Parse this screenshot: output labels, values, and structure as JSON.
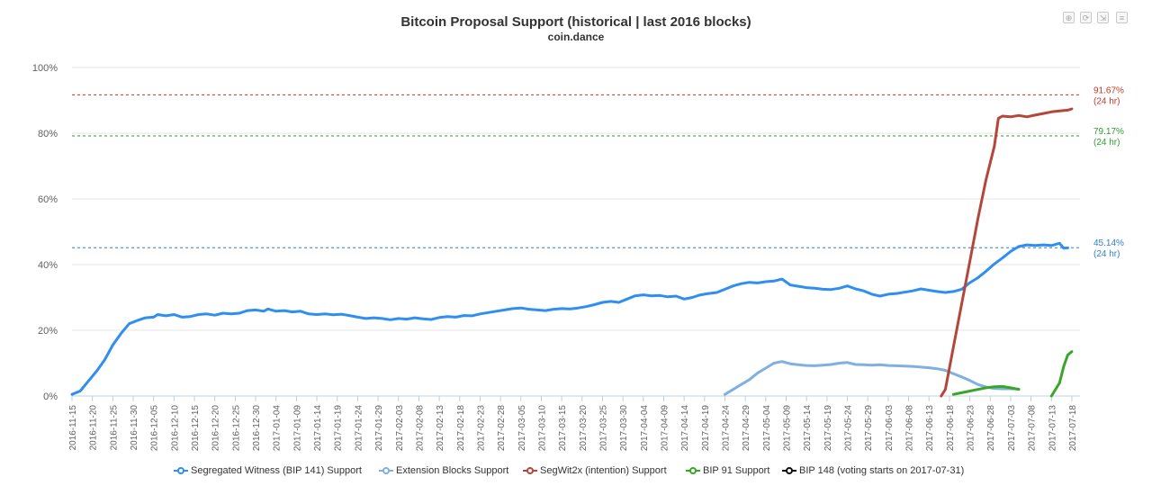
{
  "header": {
    "title": "Bitcoin Proposal Support (historical | last 2016 blocks)",
    "subtitle": "coin.dance"
  },
  "toolbar": {
    "buttons": [
      {
        "name": "zoom-in-icon",
        "glyph": "⊕"
      },
      {
        "name": "zoom-reset-icon",
        "glyph": "⟳"
      },
      {
        "name": "pan-icon",
        "glyph": "⇲"
      },
      {
        "name": "menu-icon",
        "glyph": "≡"
      }
    ]
  },
  "legend": [
    {
      "label": "Segregated Witness (BIP 141) Support",
      "color": "#2f8ff0"
    },
    {
      "label": "Extension Blocks Support",
      "color": "#7fb0e0"
    },
    {
      "label": "SegWit2x (intention) Support",
      "color": "#b5473a"
    },
    {
      "label": "BIP 91 Support",
      "color": "#3aa629"
    },
    {
      "label": "BIP 148 (voting starts on 2017-07-31)",
      "color": "#111111"
    }
  ],
  "chart_data": {
    "type": "line",
    "title": "Bitcoin Proposal Support (historical | last 2016 blocks)",
    "subtitle": "coin.dance",
    "x_start": "2016-11-15",
    "x_end": "2017-07-20",
    "x_ticks": [
      "2016-11-15",
      "2016-11-20",
      "2016-11-25",
      "2016-11-30",
      "2016-12-05",
      "2016-12-10",
      "2016-12-15",
      "2016-12-20",
      "2016-12-25",
      "2016-12-30",
      "2017-01-04",
      "2017-01-09",
      "2017-01-14",
      "2017-01-19",
      "2017-01-24",
      "2017-01-29",
      "2017-02-03",
      "2017-02-08",
      "2017-02-13",
      "2017-02-18",
      "2017-02-23",
      "2017-02-28",
      "2017-03-05",
      "2017-03-10",
      "2017-03-15",
      "2017-03-20",
      "2017-03-25",
      "2017-03-30",
      "2017-04-04",
      "2017-04-09",
      "2017-04-14",
      "2017-04-19",
      "2017-04-24",
      "2017-04-29",
      "2017-05-04",
      "2017-05-09",
      "2017-05-14",
      "2017-05-19",
      "2017-05-24",
      "2017-05-29",
      "2017-06-03",
      "2017-06-08",
      "2017-06-13",
      "2017-06-18",
      "2017-06-23",
      "2017-06-28",
      "2017-07-03",
      "2017-07-08",
      "2017-07-13",
      "2017-07-18"
    ],
    "y_ticks": [
      "0%",
      "20%",
      "40%",
      "60%",
      "80%",
      "100%"
    ],
    "ylim": [
      0,
      100
    ],
    "grid": true,
    "legend_position": "bottom",
    "series": [
      {
        "name": "Segregated Witness (BIP 141) Support",
        "color": "#2f8ff0",
        "points": [
          [
            "2016-11-15",
            0.5
          ],
          [
            "2016-11-17",
            1.5
          ],
          [
            "2016-11-19",
            4.5
          ],
          [
            "2016-11-21",
            7.5
          ],
          [
            "2016-11-23",
            11
          ],
          [
            "2016-11-25",
            15.5
          ],
          [
            "2016-11-27",
            19
          ],
          [
            "2016-11-29",
            22
          ],
          [
            "2016-12-01",
            23
          ],
          [
            "2016-12-03",
            23.8
          ],
          [
            "2016-12-05",
            24
          ],
          [
            "2016-12-06",
            24.8
          ],
          [
            "2016-12-08",
            24.4
          ],
          [
            "2016-12-10",
            24.8
          ],
          [
            "2016-12-12",
            24
          ],
          [
            "2016-12-14",
            24.2
          ],
          [
            "2016-12-16",
            24.8
          ],
          [
            "2016-12-18",
            25
          ],
          [
            "2016-12-20",
            24.6
          ],
          [
            "2016-12-22",
            25.2
          ],
          [
            "2016-12-24",
            25
          ],
          [
            "2016-12-26",
            25.2
          ],
          [
            "2016-12-28",
            26
          ],
          [
            "2016-12-30",
            26.2
          ],
          [
            "2017-01-01",
            25.8
          ],
          [
            "2017-01-02",
            26.5
          ],
          [
            "2017-01-04",
            25.8
          ],
          [
            "2017-01-06",
            26
          ],
          [
            "2017-01-08",
            25.6
          ],
          [
            "2017-01-10",
            25.8
          ],
          [
            "2017-01-12",
            25
          ],
          [
            "2017-01-14",
            24.8
          ],
          [
            "2017-01-16",
            25
          ],
          [
            "2017-01-18",
            24.7
          ],
          [
            "2017-01-20",
            24.9
          ],
          [
            "2017-01-22",
            24.5
          ],
          [
            "2017-01-24",
            24
          ],
          [
            "2017-01-26",
            23.6
          ],
          [
            "2017-01-28",
            23.8
          ],
          [
            "2017-01-30",
            23.6
          ],
          [
            "2017-02-01",
            23.2
          ],
          [
            "2017-02-03",
            23.6
          ],
          [
            "2017-02-05",
            23.4
          ],
          [
            "2017-02-07",
            23.8
          ],
          [
            "2017-02-09",
            23.5
          ],
          [
            "2017-02-11",
            23.3
          ],
          [
            "2017-02-13",
            23.9
          ],
          [
            "2017-02-15",
            24.2
          ],
          [
            "2017-02-17",
            24
          ],
          [
            "2017-02-19",
            24.5
          ],
          [
            "2017-02-21",
            24.4
          ],
          [
            "2017-02-23",
            25
          ],
          [
            "2017-02-25",
            25.4
          ],
          [
            "2017-02-27",
            25.8
          ],
          [
            "2017-03-01",
            26.2
          ],
          [
            "2017-03-03",
            26.6
          ],
          [
            "2017-03-05",
            26.8
          ],
          [
            "2017-03-07",
            26.4
          ],
          [
            "2017-03-09",
            26.2
          ],
          [
            "2017-03-11",
            26
          ],
          [
            "2017-03-13",
            26.4
          ],
          [
            "2017-03-15",
            26.6
          ],
          [
            "2017-03-17",
            26.5
          ],
          [
            "2017-03-19",
            26.8
          ],
          [
            "2017-03-21",
            27.2
          ],
          [
            "2017-03-23",
            27.8
          ],
          [
            "2017-03-25",
            28.5
          ],
          [
            "2017-03-27",
            28.8
          ],
          [
            "2017-03-29",
            28.5
          ],
          [
            "2017-03-31",
            29.5
          ],
          [
            "2017-04-02",
            30.5
          ],
          [
            "2017-04-04",
            30.8
          ],
          [
            "2017-04-06",
            30.5
          ],
          [
            "2017-04-08",
            30.6
          ],
          [
            "2017-04-10",
            30.2
          ],
          [
            "2017-04-12",
            30.4
          ],
          [
            "2017-04-14",
            29.5
          ],
          [
            "2017-04-16",
            30
          ],
          [
            "2017-04-18",
            30.8
          ],
          [
            "2017-04-20",
            31.2
          ],
          [
            "2017-04-22",
            31.5
          ],
          [
            "2017-04-24",
            32.5
          ],
          [
            "2017-04-26",
            33.5
          ],
          [
            "2017-04-28",
            34.2
          ],
          [
            "2017-04-30",
            34.6
          ],
          [
            "2017-05-02",
            34.4
          ],
          [
            "2017-05-04",
            34.8
          ],
          [
            "2017-05-06",
            35
          ],
          [
            "2017-05-08",
            35.6
          ],
          [
            "2017-05-10",
            33.8
          ],
          [
            "2017-05-12",
            33.4
          ],
          [
            "2017-05-14",
            33
          ],
          [
            "2017-05-16",
            32.8
          ],
          [
            "2017-05-18",
            32.5
          ],
          [
            "2017-05-20",
            32.4
          ],
          [
            "2017-05-22",
            32.8
          ],
          [
            "2017-05-24",
            33.5
          ],
          [
            "2017-05-26",
            32.6
          ],
          [
            "2017-05-28",
            32
          ],
          [
            "2017-05-30",
            31
          ],
          [
            "2017-06-01",
            30.4
          ],
          [
            "2017-06-03",
            31
          ],
          [
            "2017-06-05",
            31.2
          ],
          [
            "2017-06-07",
            31.6
          ],
          [
            "2017-06-09",
            32
          ],
          [
            "2017-06-11",
            32.6
          ],
          [
            "2017-06-13",
            32.2
          ],
          [
            "2017-06-15",
            31.8
          ],
          [
            "2017-06-17",
            31.5
          ],
          [
            "2017-06-19",
            31.8
          ],
          [
            "2017-06-21",
            32.5
          ],
          [
            "2017-06-23",
            34.5
          ],
          [
            "2017-06-25",
            36
          ],
          [
            "2017-06-27",
            38
          ],
          [
            "2017-06-29",
            40.2
          ],
          [
            "2017-07-01",
            42
          ],
          [
            "2017-07-03",
            44
          ],
          [
            "2017-07-05",
            45.5
          ],
          [
            "2017-07-07",
            46
          ],
          [
            "2017-07-09",
            45.8
          ],
          [
            "2017-07-11",
            46
          ],
          [
            "2017-07-13",
            45.8
          ],
          [
            "2017-07-15",
            46.5
          ],
          [
            "2017-07-16",
            45
          ],
          [
            "2017-07-17",
            45.1
          ]
        ]
      },
      {
        "name": "Extension Blocks Support",
        "color": "#7fb0e0",
        "points": [
          [
            "2017-04-24",
            0.5
          ],
          [
            "2017-04-26",
            2
          ],
          [
            "2017-04-28",
            3.5
          ],
          [
            "2017-04-30",
            5
          ],
          [
            "2017-05-02",
            7
          ],
          [
            "2017-05-04",
            8.5
          ],
          [
            "2017-05-06",
            10
          ],
          [
            "2017-05-08",
            10.5
          ],
          [
            "2017-05-10",
            9.8
          ],
          [
            "2017-05-12",
            9.5
          ],
          [
            "2017-05-14",
            9.3
          ],
          [
            "2017-05-16",
            9.2
          ],
          [
            "2017-05-18",
            9.4
          ],
          [
            "2017-05-20",
            9.6
          ],
          [
            "2017-05-22",
            10
          ],
          [
            "2017-05-24",
            10.2
          ],
          [
            "2017-05-26",
            9.6
          ],
          [
            "2017-05-28",
            9.5
          ],
          [
            "2017-05-30",
            9.4
          ],
          [
            "2017-06-01",
            9.5
          ],
          [
            "2017-06-03",
            9.3
          ],
          [
            "2017-06-05",
            9.2
          ],
          [
            "2017-06-07",
            9.1
          ],
          [
            "2017-06-09",
            9
          ],
          [
            "2017-06-11",
            8.8
          ],
          [
            "2017-06-13",
            8.6
          ],
          [
            "2017-06-15",
            8.3
          ],
          [
            "2017-06-17",
            7.8
          ],
          [
            "2017-06-19",
            6.8
          ],
          [
            "2017-06-21",
            5.8
          ],
          [
            "2017-06-23",
            4.7
          ],
          [
            "2017-06-25",
            3.5
          ],
          [
            "2017-06-27",
            2.7
          ],
          [
            "2017-06-29",
            2.3
          ],
          [
            "2017-07-01",
            2.2
          ],
          [
            "2017-07-03",
            2.2
          ],
          [
            "2017-07-05",
            2.1
          ]
        ]
      },
      {
        "name": "SegWit2x (intention) Support",
        "color": "#b5473a",
        "points": [
          [
            "2017-06-16",
            0
          ],
          [
            "2017-06-17",
            2
          ],
          [
            "2017-06-19",
            15
          ],
          [
            "2017-06-21",
            28
          ],
          [
            "2017-06-23",
            41
          ],
          [
            "2017-06-25",
            54
          ],
          [
            "2017-06-27",
            66
          ],
          [
            "2017-06-29",
            76
          ],
          [
            "2017-06-30",
            84.5
          ],
          [
            "2017-07-01",
            85.2
          ],
          [
            "2017-07-03",
            85
          ],
          [
            "2017-07-05",
            85.4
          ],
          [
            "2017-07-07",
            85
          ],
          [
            "2017-07-09",
            85.5
          ],
          [
            "2017-07-11",
            86
          ],
          [
            "2017-07-13",
            86.5
          ],
          [
            "2017-07-15",
            86.8
          ],
          [
            "2017-07-17",
            87
          ],
          [
            "2017-07-18",
            87.4
          ]
        ]
      },
      {
        "name": "BIP 91 Support",
        "color": "#3aa629",
        "segments": [
          [
            [
              "2017-06-19",
              0.5
            ],
            [
              "2017-06-21",
              1
            ],
            [
              "2017-06-23",
              1.5
            ],
            [
              "2017-06-25",
              2
            ],
            [
              "2017-06-27",
              2.5
            ],
            [
              "2017-06-29",
              2.8
            ],
            [
              "2017-07-01",
              2.9
            ],
            [
              "2017-07-03",
              2.5
            ],
            [
              "2017-07-05",
              2
            ]
          ],
          [
            [
              "2017-07-13",
              0
            ],
            [
              "2017-07-15",
              4
            ],
            [
              "2017-07-16",
              9
            ],
            [
              "2017-07-17",
              12.5
            ],
            [
              "2017-07-18",
              13.5
            ]
          ]
        ]
      },
      {
        "name": "BIP 148 (voting starts on 2017-07-31)",
        "color": "#111111",
        "points": []
      }
    ],
    "reference_lines": [
      {
        "value": 91.67,
        "label": "91.67%",
        "sublabel": "(24 hr)",
        "color": "#c0392b"
      },
      {
        "value": 79.17,
        "label": "79.17%",
        "sublabel": "(24 hr)",
        "color": "#2e9e2e"
      },
      {
        "value": 45.14,
        "label": "45.14%",
        "sublabel": "(24 hr)",
        "color": "#2f7fd0"
      }
    ]
  }
}
